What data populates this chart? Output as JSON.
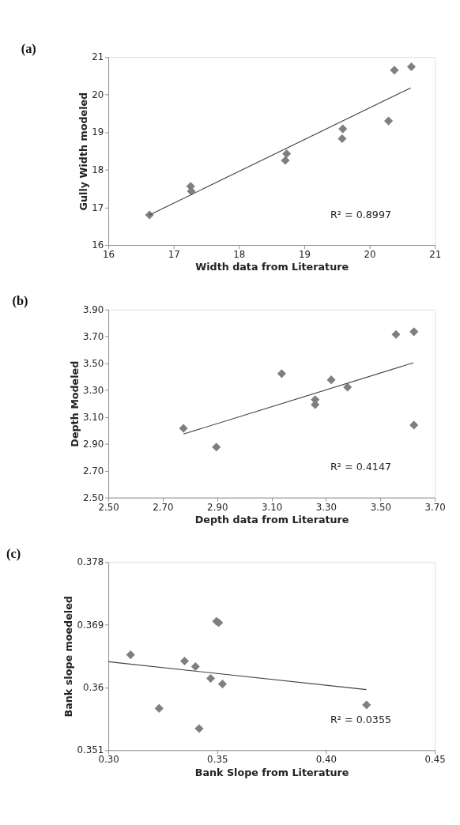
{
  "chart_data": [
    {
      "type": "scatter",
      "title": "(a)",
      "xlabel": "Width data from Literature",
      "ylabel": "Gully Width  modeled",
      "xlim": [
        16,
        21
      ],
      "ylim": [
        16,
        21
      ],
      "xticks": [
        16,
        17,
        18,
        19,
        20,
        21
      ],
      "yticks": [
        16,
        17,
        18,
        19,
        20,
        21
      ],
      "grid": false,
      "series": [
        {
          "marker": "diamond",
          "color": "#7f7f7f",
          "x": [
            16.63,
            17.26,
            17.27,
            18.71,
            18.73,
            19.58,
            19.59,
            20.29,
            20.38,
            20.64
          ],
          "values": [
            16.8,
            17.56,
            17.43,
            18.25,
            18.43,
            18.83,
            19.09,
            19.3,
            20.65,
            20.74
          ]
        },
        {
          "type": "line",
          "color": "#404040",
          "x": [
            16.63,
            20.63
          ],
          "values": [
            16.8,
            20.18
          ]
        }
      ],
      "annotations": [
        "R² = 0.8997"
      ]
    },
    {
      "type": "scatter",
      "title": "(b)",
      "xlabel": "Depth data from Literature",
      "ylabel": "Depth Modeled",
      "xlim": [
        2.5,
        3.7
      ],
      "ylim": [
        2.5,
        3.9
      ],
      "grid": false,
      "xticks": [
        {
          "value": 2.5,
          "label": "2.50"
        },
        {
          "value": 2.7,
          "label": "2.70"
        },
        {
          "value": 2.9,
          "label": "2.90"
        },
        {
          "value": 3.1,
          "label": "3.10"
        },
        {
          "value": 3.3,
          "label": "3.30"
        },
        {
          "value": 3.5,
          "label": "3.50"
        },
        {
          "value": 3.7,
          "label": "3.70"
        }
      ],
      "yticks": [
        {
          "value": 2.5,
          "label": "2.50"
        },
        {
          "value": 2.7,
          "label": "2.70"
        },
        {
          "value": 2.9,
          "label": "2.90"
        },
        {
          "value": 3.1,
          "label": "3.10"
        },
        {
          "value": 3.3,
          "label": "3.30"
        },
        {
          "value": 3.5,
          "label": "3.50"
        },
        {
          "value": 3.7,
          "label": "3.70"
        },
        {
          "value": 3.9,
          "label": "3.90"
        }
      ],
      "series": [
        {
          "marker": "diamond",
          "color": "#7f7f7f",
          "x": [
            2.776,
            2.897,
            3.137,
            3.26,
            3.26,
            3.319,
            3.379,
            3.557,
            3.623,
            3.623
          ],
          "values": [
            3.016,
            2.876,
            3.423,
            3.229,
            3.192,
            3.377,
            3.322,
            3.715,
            3.735,
            3.04
          ]
        },
        {
          "type": "line",
          "color": "#404040",
          "x": [
            2.776,
            3.621
          ],
          "values": [
            2.973,
            3.504
          ]
        }
      ],
      "annotations": [
        "R² = 0.4147"
      ]
    },
    {
      "type": "scatter",
      "title": "(c)",
      "xlabel": "Bank Slope from Literature",
      "ylabel": "Bank slope moedeled",
      "xlim": [
        0.3,
        0.45
      ],
      "ylim": [
        0.351,
        0.378
      ],
      "grid": false,
      "xticks": [
        {
          "value": 0.3,
          "label": "0.30"
        },
        {
          "value": 0.35,
          "label": "0.35"
        },
        {
          "value": 0.4,
          "label": "0.40"
        },
        {
          "value": 0.45,
          "label": "0.45"
        }
      ],
      "yticks": [
        0.351,
        {
          "value": 0.36,
          "label": "0.36"
        },
        0.369,
        0.378
      ],
      "series": [
        {
          "marker": "diamond",
          "color": "#7f7f7f",
          "x": [
            0.3102,
            0.3233,
            0.335,
            0.34,
            0.3417,
            0.347,
            0.3497,
            0.3507,
            0.3524,
            0.4186
          ],
          "values": [
            0.3647,
            0.357,
            0.3638,
            0.363,
            0.3541,
            0.3613,
            0.3695,
            0.3693,
            0.3605,
            0.3575
          ]
        },
        {
          "type": "line",
          "color": "#404040",
          "x": [
            0.3,
            0.4185
          ],
          "values": [
            0.3637,
            0.3597
          ]
        }
      ],
      "annotations": [
        "R² = 0.0355"
      ]
    }
  ]
}
